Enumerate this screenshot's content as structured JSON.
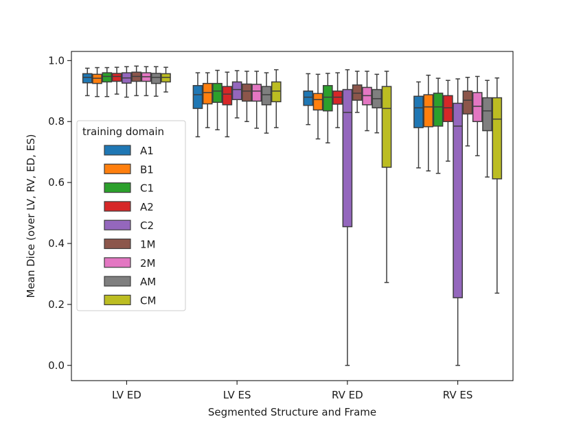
{
  "chart_data": {
    "type": "box",
    "title": "",
    "xlabel": "Segmented Structure and Frame",
    "ylabel": "Mean Dice (over LV, RV, ED, ES)",
    "ylim": [
      -0.05,
      1.03
    ],
    "yticks": [
      "0.0",
      "0.2",
      "0.4",
      "0.6",
      "0.8",
      "1.0"
    ],
    "ytick_values": [
      0.0,
      0.2,
      0.4,
      0.6,
      0.8,
      1.0
    ],
    "categories": [
      "LV ED",
      "LV ES",
      "RV ED",
      "RV ES"
    ],
    "legend": {
      "title": "training domain",
      "placement": "center-left"
    },
    "series": [
      {
        "name": "A1",
        "color": "#1f77b4",
        "boxes": [
          {
            "whislo": 0.885,
            "q1": 0.927,
            "med": 0.945,
            "q3": 0.957,
            "whishi": 0.975
          },
          {
            "whislo": 0.75,
            "q1": 0.843,
            "med": 0.888,
            "q3": 0.918,
            "whishi": 0.96
          },
          {
            "whislo": 0.79,
            "q1": 0.853,
            "med": 0.88,
            "q3": 0.9,
            "whishi": 0.957
          },
          {
            "whislo": 0.648,
            "q1": 0.78,
            "med": 0.845,
            "q3": 0.883,
            "whishi": 0.93
          }
        ]
      },
      {
        "name": "B1",
        "color": "#ff7f0e",
        "boxes": [
          {
            "whislo": 0.882,
            "q1": 0.925,
            "med": 0.942,
            "q3": 0.955,
            "whishi": 0.977
          },
          {
            "whislo": 0.78,
            "q1": 0.858,
            "med": 0.895,
            "q3": 0.925,
            "whishi": 0.96
          },
          {
            "whislo": 0.743,
            "q1": 0.838,
            "med": 0.872,
            "q3": 0.892,
            "whishi": 0.955
          },
          {
            "whislo": 0.638,
            "q1": 0.783,
            "med": 0.848,
            "q3": 0.888,
            "whishi": 0.952
          }
        ]
      },
      {
        "name": "C1",
        "color": "#2ca02c",
        "boxes": [
          {
            "whislo": 0.882,
            "q1": 0.93,
            "med": 0.948,
            "q3": 0.96,
            "whishi": 0.977
          },
          {
            "whislo": 0.773,
            "q1": 0.863,
            "med": 0.9,
            "q3": 0.925,
            "whishi": 0.968
          },
          {
            "whislo": 0.73,
            "q1": 0.835,
            "med": 0.88,
            "q3": 0.918,
            "whishi": 0.958
          },
          {
            "whislo": 0.63,
            "q1": 0.785,
            "med": 0.848,
            "q3": 0.893,
            "whishi": 0.942
          }
        ]
      },
      {
        "name": "A2",
        "color": "#d62728",
        "boxes": [
          {
            "whislo": 0.89,
            "q1": 0.932,
            "med": 0.948,
            "q3": 0.958,
            "whishi": 0.978
          },
          {
            "whislo": 0.75,
            "q1": 0.855,
            "med": 0.89,
            "q3": 0.915,
            "whishi": 0.962
          },
          {
            "whislo": 0.78,
            "q1": 0.857,
            "med": 0.88,
            "q3": 0.9,
            "whishi": 0.96
          },
          {
            "whislo": 0.67,
            "q1": 0.8,
            "med": 0.845,
            "q3": 0.885,
            "whishi": 0.935
          }
        ]
      },
      {
        "name": "C2",
        "color": "#9467bd",
        "boxes": [
          {
            "whislo": 0.88,
            "q1": 0.926,
            "med": 0.943,
            "q3": 0.96,
            "whishi": 0.98
          },
          {
            "whislo": 0.812,
            "q1": 0.872,
            "med": 0.905,
            "q3": 0.93,
            "whishi": 0.967
          },
          {
            "whislo": 0.0,
            "q1": 0.455,
            "med": 0.83,
            "q3": 0.905,
            "whishi": 0.97
          },
          {
            "whislo": 0.0,
            "q1": 0.222,
            "med": 0.785,
            "q3": 0.86,
            "whishi": 0.94
          }
        ]
      },
      {
        "name": "1M",
        "color": "#8c564b",
        "boxes": [
          {
            "whislo": 0.885,
            "q1": 0.932,
            "med": 0.948,
            "q3": 0.962,
            "whishi": 0.982
          },
          {
            "whislo": 0.8,
            "q1": 0.867,
            "med": 0.9,
            "q3": 0.923,
            "whishi": 0.965
          },
          {
            "whislo": 0.83,
            "q1": 0.87,
            "med": 0.893,
            "q3": 0.92,
            "whishi": 0.965
          },
          {
            "whislo": 0.72,
            "q1": 0.825,
            "med": 0.87,
            "q3": 0.9,
            "whishi": 0.945
          }
        ]
      },
      {
        "name": "2M",
        "color": "#e377c2",
        "boxes": [
          {
            "whislo": 0.885,
            "q1": 0.932,
            "med": 0.947,
            "q3": 0.96,
            "whishi": 0.98
          },
          {
            "whislo": 0.778,
            "q1": 0.867,
            "med": 0.9,
            "q3": 0.922,
            "whishi": 0.965
          },
          {
            "whislo": 0.77,
            "q1": 0.855,
            "med": 0.885,
            "q3": 0.912,
            "whishi": 0.965
          },
          {
            "whislo": 0.688,
            "q1": 0.8,
            "med": 0.85,
            "q3": 0.895,
            "whishi": 0.948
          }
        ]
      },
      {
        "name": "AM",
        "color": "#7f7f7f",
        "boxes": [
          {
            "whislo": 0.883,
            "q1": 0.925,
            "med": 0.945,
            "q3": 0.958,
            "whishi": 0.98
          },
          {
            "whislo": 0.762,
            "q1": 0.855,
            "med": 0.888,
            "q3": 0.915,
            "whishi": 0.96
          },
          {
            "whislo": 0.763,
            "q1": 0.845,
            "med": 0.875,
            "q3": 0.905,
            "whishi": 0.955
          },
          {
            "whislo": 0.618,
            "q1": 0.77,
            "med": 0.835,
            "q3": 0.878,
            "whishi": 0.935
          }
        ]
      },
      {
        "name": "CM",
        "color": "#bcbd22",
        "boxes": [
          {
            "whislo": 0.897,
            "q1": 0.93,
            "med": 0.945,
            "q3": 0.957,
            "whishi": 0.978
          },
          {
            "whislo": 0.78,
            "q1": 0.865,
            "med": 0.9,
            "q3": 0.93,
            "whishi": 0.97
          },
          {
            "whislo": 0.272,
            "q1": 0.65,
            "med": 0.843,
            "q3": 0.915,
            "whishi": 0.965
          },
          {
            "whislo": 0.237,
            "q1": 0.612,
            "med": 0.808,
            "q3": 0.878,
            "whishi": 0.943
          }
        ]
      }
    ]
  }
}
